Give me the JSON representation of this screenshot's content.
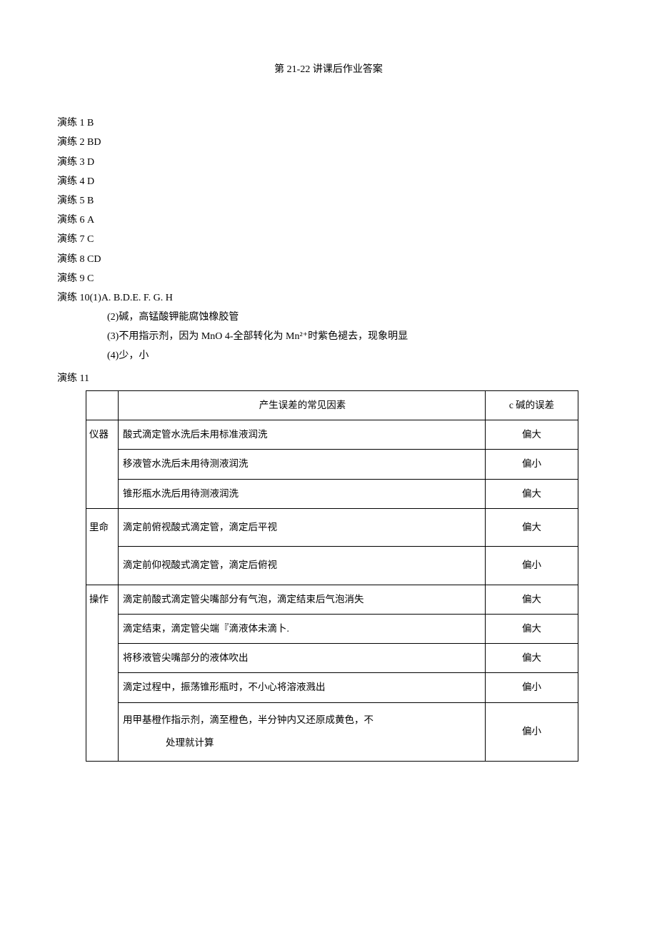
{
  "title": "第 21-22 讲课后作业答案",
  "exercises": [
    {
      "label": "演练 1",
      "answer": "B"
    },
    {
      "label": "演练 2",
      "answer": "BD"
    },
    {
      "label": "演练 3",
      "answer": "D"
    },
    {
      "label": "演练 4",
      "answer": "D"
    },
    {
      "label": "演练 5",
      "answer": "B"
    },
    {
      "label": "演练 6",
      "answer": "A"
    },
    {
      "label": "演练 7",
      "answer": "C"
    },
    {
      "label": "演练 8",
      "answer": "CD"
    },
    {
      "label": "演练 9",
      "answer": "C"
    }
  ],
  "exercise10": {
    "label": "演练 10",
    "parts": [
      "(1)A. B.D.E. F. G. H",
      "(2)碱，高锰酸钾能腐蚀橡胶管",
      "(3)不用指示剂，因为 MnO 4-全部转化为 Mn²⁺时紫色褪去，现象明显",
      "(4)少，小"
    ]
  },
  "exercise11": {
    "label": "演练 11",
    "table": {
      "header": {
        "blank": "",
        "factor": "产生误差的常见因素",
        "error": "c 碱的误差"
      },
      "groups": [
        {
          "category": "仪器",
          "rows": [
            {
              "factor": "酸式滴定管水洗后未用标准液润洗",
              "error": "偏大"
            },
            {
              "factor": "移液管水洗后未用待测液润洗",
              "error": "偏小"
            },
            {
              "factor": "锥形瓶水洗后用待测液润洗",
              "error": "偏大"
            }
          ]
        },
        {
          "category": "里命",
          "rows": [
            {
              "factor": "滴定前俯视酸式滴定管，滴定后平视",
              "error": "偏大",
              "spacer": true
            },
            {
              "factor": "滴定前仰视酸式滴定管，滴定后俯视",
              "error": "偏小",
              "spacer": true
            }
          ]
        },
        {
          "category": "操作",
          "rows": [
            {
              "factor": "滴定前酸式滴定管尖嘴部分有气泡，滴定结束后气泡消失",
              "error": "偏大"
            },
            {
              "factor": "滴定结束，滴定管尖端『滴液体未滴卜.",
              "error": "偏大"
            },
            {
              "factor": "将移液管尖嘴部分的液体吹出",
              "error": "偏大"
            },
            {
              "factor": "滴定过程中，振荡锥形瓶时，不小心将溶液溅出",
              "error": "偏小"
            },
            {
              "factor_line1": "用甲基橙作指示剂，滴至橙色，半分钟内又还原成黄色，不",
              "factor_line2": "处理就计算",
              "error": "偏小",
              "multiline": true
            }
          ]
        }
      ]
    }
  },
  "colors": {
    "text": "#000000",
    "background": "#ffffff",
    "border": "#000000"
  },
  "typography": {
    "body_fontsize": 14,
    "table_fontsize": 13.5,
    "font_family": "SimSun"
  }
}
